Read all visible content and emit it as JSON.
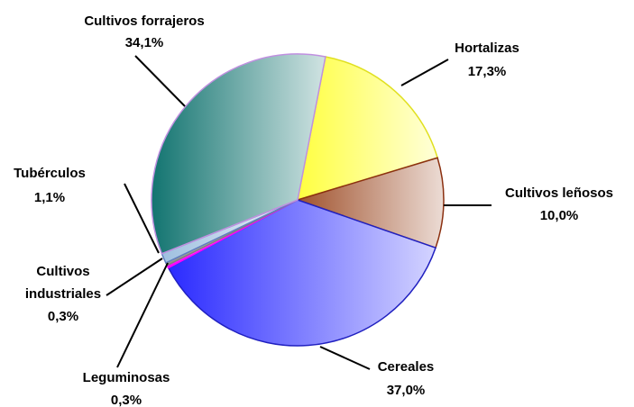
{
  "chart_data": {
    "type": "pie",
    "categories": [
      "Hortalizas",
      "Cultivos leñosos",
      "Cereales",
      "Leguminosas",
      "Cultivos industriales",
      "Tubérculos",
      "Cultivos forrajeros"
    ],
    "values": [
      17.3,
      10.0,
      37.0,
      0.3,
      0.3,
      1.1,
      34.1
    ],
    "value_labels": [
      "17,3%",
      "10,0%",
      "37,0%",
      "0,3%",
      "0,3%",
      "1,1%",
      "34,1%"
    ],
    "colors": [
      "#ffff40",
      "#a0522d",
      "#2a2aff",
      "#ff00ff",
      "#909090",
      "#9fc0e0",
      "#127470"
    ]
  }
}
